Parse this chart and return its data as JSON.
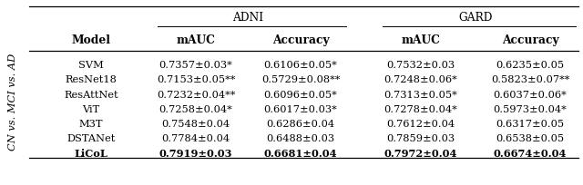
{
  "title_adni": "ADNI",
  "title_gard": "GARD",
  "col_header_model": "Model",
  "col_header_mauc": "mAUC",
  "col_header_accuracy": "Accuracy",
  "y_label": "CN vs. MCI vs. AD",
  "rows": [
    {
      "model": "SVM",
      "adni_mauc": "0.7357±0.03*",
      "adni_acc": "0.6106±0.05*",
      "gard_mauc": "0.7532±0.03",
      "gard_acc": "0.6235±0.05",
      "bold": false
    },
    {
      "model": "ResNet18",
      "adni_mauc": "0.7153±0.05**",
      "adni_acc": "0.5729±0.08**",
      "gard_mauc": "0.7248±0.06*",
      "gard_acc": "0.5823±0.07**",
      "bold": false
    },
    {
      "model": "ResAttNet",
      "adni_mauc": "0.7232±0.04**",
      "adni_acc": "0.6096±0.05*",
      "gard_mauc": "0.7313±0.05*",
      "gard_acc": "0.6037±0.06*",
      "bold": false
    },
    {
      "model": "ViT",
      "adni_mauc": "0.7258±0.04*",
      "adni_acc": "0.6017±0.03*",
      "gard_mauc": "0.7278±0.04*",
      "gard_acc": "0.5973±0.04*",
      "bold": false
    },
    {
      "model": "M3T",
      "adni_mauc": "0.7548±0.04",
      "adni_acc": "0.6286±0.04",
      "gard_mauc": "0.7612±0.04",
      "gard_acc": "0.6317±0.05",
      "bold": false
    },
    {
      "model": "DSTANet",
      "adni_mauc": "0.7784±0.04",
      "adni_acc": "0.6488±0.03",
      "gard_mauc": "0.7859±0.03",
      "gard_acc": "0.6538±0.05",
      "bold": false
    },
    {
      "model": "LiCoL",
      "adni_mauc": "0.7919±0.03",
      "adni_acc": "0.6681±0.04",
      "gard_mauc": "0.7972±0.04",
      "gard_acc": "0.6674±0.04",
      "bold": true
    }
  ],
  "bg_color": "#ffffff",
  "font_size": 8.2,
  "header_font_size": 8.8,
  "fig_width": 6.4,
  "fig_height": 2.05,
  "dpi": 100
}
